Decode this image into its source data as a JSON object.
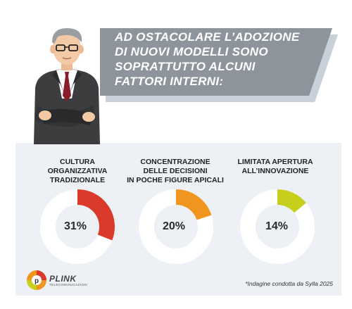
{
  "headline": {
    "lines": [
      "AD OSTACOLARE L’ADOZIONE",
      "DI NUOVI MODELLI SONO",
      "SOPRATTUTTO ALCUNI",
      "FATTORI INTERNI:"
    ]
  },
  "stats": [
    {
      "label_lines": [
        "CULTURA",
        "ORGANIZZATIVA",
        "TRADIZIONALE"
      ],
      "value_text": "31%",
      "value": 0.31,
      "color": "#d93a2b"
    },
    {
      "label_lines": [
        "CONCENTRAZIONE",
        "DELLE DECISIONI",
        "IN POCHE FIGURE APICALI"
      ],
      "value_text": "20%",
      "value": 0.2,
      "color": "#f0961e"
    },
    {
      "label_lines": [
        "LIMITATA APERTURA",
        "ALL’INNOVAZIONE"
      ],
      "value_text": "14%",
      "value": 0.14,
      "color": "#c6cf1c"
    }
  ],
  "logo": {
    "name": "PLINK",
    "tagline": "TELECOMUNICAZIONI"
  },
  "source": "*Indagine condotta da Sylla 2025"
}
